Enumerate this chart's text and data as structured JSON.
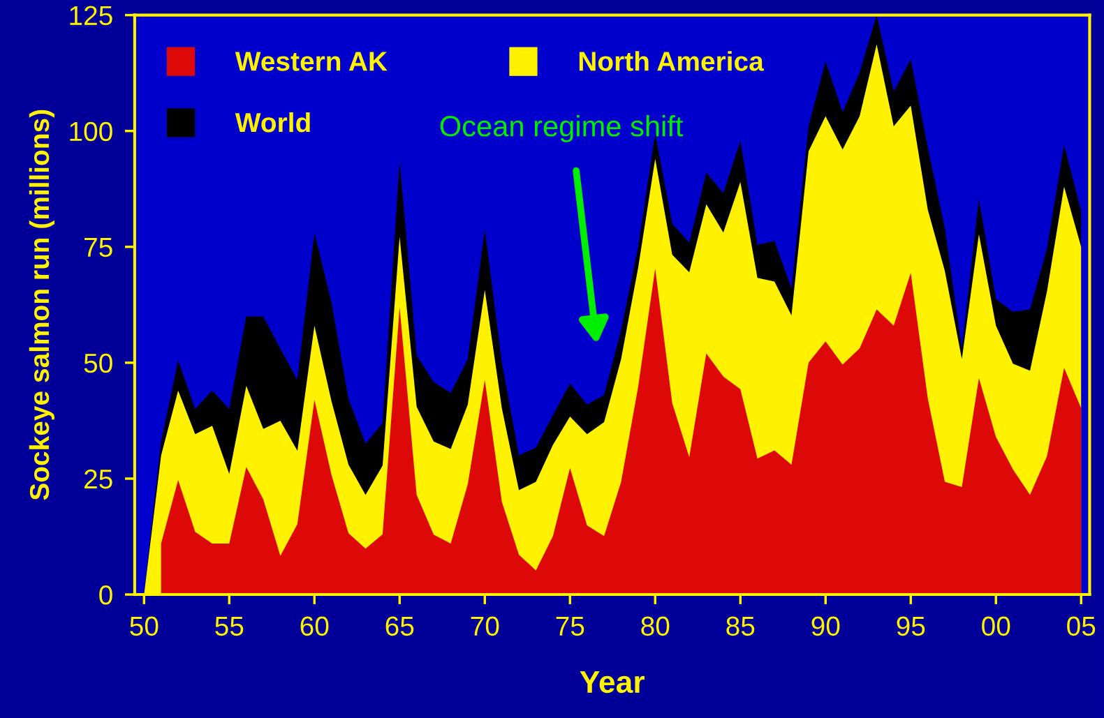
{
  "chart_data": {
    "type": "area",
    "xlabel": "Year",
    "ylabel": "Sockeye salmon run (millions)",
    "xlim": [
      1949.45,
      2005.5
    ],
    "ylim": [
      0,
      125
    ],
    "xticks": [
      {
        "value": 1950,
        "label": "50"
      },
      {
        "value": 1955,
        "label": "55"
      },
      {
        "value": 1960,
        "label": "60"
      },
      {
        "value": 1965,
        "label": "65"
      },
      {
        "value": 1970,
        "label": "70"
      },
      {
        "value": 1975,
        "label": "75"
      },
      {
        "value": 1980,
        "label": "80"
      },
      {
        "value": 1985,
        "label": "85"
      },
      {
        "value": 1990,
        "label": "90"
      },
      {
        "value": 1995,
        "label": "95"
      },
      {
        "value": 2000,
        "label": "00"
      },
      {
        "value": 2005,
        "label": "05"
      }
    ],
    "yticks": [
      0,
      25,
      50,
      75,
      100,
      125
    ],
    "grid": false,
    "legend": "top left",
    "annotations": [
      "Ocean regime shift"
    ],
    "series": [
      {
        "name": "World",
        "color": "#000000",
        "x": [
          1950,
          1951,
          1952,
          1953,
          1954,
          1955,
          1956,
          1957,
          1958,
          1959,
          1960,
          1961,
          1962,
          1963,
          1964,
          1965,
          1966,
          1967,
          1968,
          1969,
          1970,
          1971,
          1972,
          1973,
          1974,
          1975,
          1976,
          1977,
          1978,
          1979,
          1980,
          1981,
          1982,
          1983,
          1984,
          1985,
          1986,
          1987,
          1988,
          1989,
          1990,
          1991,
          1992,
          1993,
          1994,
          1995,
          1996,
          1997,
          1998,
          1999,
          2000,
          2001,
          2002,
          2003,
          2004,
          2005
        ],
        "values": [
          0,
          33,
          50.5,
          40,
          44,
          40,
          60,
          60,
          53,
          46.3,
          78,
          63,
          42.2,
          32.5,
          37,
          93.6,
          51.6,
          45.8,
          43.5,
          50.8,
          78.8,
          50,
          30,
          31.7,
          38.7,
          45.5,
          41,
          43,
          57,
          75,
          99.4,
          80,
          75.9,
          91,
          86.6,
          97.9,
          75.4,
          76.3,
          66,
          101,
          115,
          104,
          112.6,
          125,
          108.5,
          115.5,
          96.4,
          79,
          53,
          85.4,
          63.7,
          61,
          61.5,
          74.7,
          97,
          82.7
        ]
      },
      {
        "name": "North America",
        "color": "#fff200",
        "x": [
          1950,
          1951,
          1952,
          1953,
          1954,
          1955,
          1956,
          1957,
          1958,
          1959,
          1960,
          1961,
          1962,
          1963,
          1964,
          1965,
          1966,
          1967,
          1968,
          1969,
          1970,
          1971,
          1972,
          1973,
          1974,
          1975,
          1976,
          1977,
          1978,
          1979,
          1980,
          1981,
          1982,
          1983,
          1984,
          1985,
          1986,
          1987,
          1988,
          1989,
          1990,
          1991,
          1992,
          1993,
          1994,
          1995,
          1996,
          1997,
          1998,
          1999,
          2000,
          2001,
          2002,
          2003,
          2004,
          2005
        ],
        "values": [
          0,
          30,
          44,
          34.6,
          36.4,
          26,
          45,
          35.7,
          37.5,
          31,
          58,
          41.7,
          28,
          21.5,
          27.8,
          77.2,
          40.5,
          33,
          31.4,
          41,
          65.7,
          40.2,
          22.5,
          24.3,
          32.3,
          38.4,
          34.6,
          37.2,
          50.8,
          70.5,
          94,
          73.3,
          69.5,
          84.2,
          78.1,
          89,
          68.3,
          67.5,
          60.2,
          95.6,
          103.2,
          96,
          103.2,
          118.7,
          101,
          105.5,
          83,
          69.8,
          50.8,
          77.7,
          58,
          49.8,
          48.3,
          65.5,
          88,
          75
        ]
      },
      {
        "name": "Western AK",
        "color": "#dd0808",
        "x": [
          1951,
          1952,
          1953,
          1954,
          1955,
          1956,
          1957,
          1958,
          1959,
          1960,
          1961,
          1962,
          1963,
          1964,
          1965,
          1966,
          1967,
          1968,
          1969,
          1970,
          1971,
          1972,
          1973,
          1974,
          1975,
          1976,
          1977,
          1978,
          1979,
          1980,
          1981,
          1982,
          1983,
          1984,
          1985,
          1986,
          1987,
          1988,
          1989,
          1990,
          1991,
          1992,
          1993,
          1994,
          1995,
          1996,
          1997,
          1998,
          1999,
          2000,
          2001,
          2002,
          2003,
          2004,
          2005
        ],
        "values": [
          11,
          24.7,
          13.5,
          11,
          11,
          27.5,
          20.5,
          8.3,
          15.2,
          42,
          25.8,
          13.2,
          9.9,
          13,
          62,
          21.5,
          12.9,
          11,
          23.8,
          46.3,
          20,
          8.6,
          5.2,
          12.6,
          27.3,
          14.9,
          12.6,
          24.3,
          44.8,
          70.3,
          41.3,
          29.6,
          52,
          47,
          44.3,
          29.3,
          31.1,
          28,
          50,
          54.6,
          49.6,
          53.1,
          61.5,
          58,
          69.4,
          42.3,
          24.3,
          23.2,
          46.7,
          34,
          27,
          21.5,
          29.9,
          48.9,
          40.2
        ]
      }
    ]
  }
}
